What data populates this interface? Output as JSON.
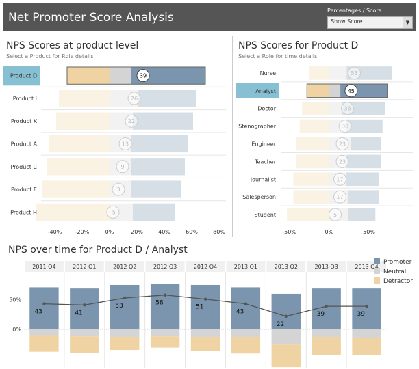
{
  "header": {
    "title": "Net Promoter Score Analysis",
    "filter_label": "Percentages / Score",
    "filter_value": "Show Score"
  },
  "colors": {
    "promoter": "#7a95ad",
    "neutral": "#d4d4d4",
    "detractor": "#efd3a2",
    "highlight": "#86c0d2"
  },
  "panel1": {
    "title": "NPS Scores at product level",
    "subtitle": "Select a Product for Role details"
  },
  "panel2": {
    "title": "NPS Scores for Product D",
    "subtitle": "Select a Role for time details"
  },
  "panel3": {
    "title": "NPS over time for Product D / Analyst"
  },
  "legend": [
    "Promoter",
    "Neutral",
    "Detractor"
  ],
  "chart_data": [
    {
      "type": "bar",
      "title": "NPS Scores at product level",
      "categories": [
        "Product D",
        "Product I",
        "Product K",
        "Product A",
        "Product C",
        "Product E",
        "Product H"
      ],
      "selected": "Product D",
      "xlim": [
        -50,
        85
      ],
      "xticks": [
        "-40%",
        "-20%",
        "0%",
        "20%",
        "40%",
        "60%",
        "80%"
      ],
      "xtick_values": [
        -40,
        -20,
        0,
        20,
        40,
        60,
        80
      ],
      "series": [
        {
          "name": "Detractor",
          "values": [
            -31,
            -37,
            -39,
            -44,
            -46,
            -49,
            -54
          ]
        },
        {
          "name": "Neutral",
          "values": [
            16,
            21,
            17,
            16,
            16,
            16,
            17
          ]
        },
        {
          "name": "Promoter",
          "values": [
            70,
            63,
            61,
            57,
            55,
            52,
            48
          ]
        }
      ],
      "scores": [
        39,
        26,
        22,
        13,
        9,
        3,
        -5
      ]
    },
    {
      "type": "bar",
      "title": "NPS Scores for Product D",
      "categories": [
        "Nurse",
        "Analyst",
        "Doctor",
        "Stenographer",
        "Engineer",
        "Teacher",
        "Journalist",
        "Salesperson",
        "Student"
      ],
      "selected": "Analyst",
      "xlim": [
        -60,
        105
      ],
      "xticks": [
        "-50%",
        "0%",
        "50%"
      ],
      "xtick_values": [
        -50,
        0,
        50
      ],
      "series": [
        {
          "name": "Detractor",
          "values": [
            -25,
            -28,
            -34,
            -37,
            -42,
            -42,
            -45,
            -45,
            -53
          ]
        },
        {
          "name": "Neutral",
          "values": [
            22,
            14,
            16,
            21,
            27,
            22,
            21,
            24,
            24
          ]
        },
        {
          "name": "Promoter",
          "values": [
            79,
            73,
            70,
            67,
            65,
            65,
            62,
            62,
            58
          ]
        }
      ],
      "scores": [
        53,
        45,
        36,
        30,
        23,
        23,
        17,
        17,
        5
      ]
    },
    {
      "type": "bar",
      "title": "NPS over time for Product D / Analyst",
      "categories": [
        "2011 Q4",
        "2012 Q1",
        "2012 Q2",
        "2012 Q3",
        "2012 Q4",
        "2013 Q1",
        "2013 Q2",
        "2013 Q3",
        "2013 Q4"
      ],
      "ylim": [
        -65,
        90
      ],
      "yticks": [
        "50%",
        "0%"
      ],
      "ytick_values": [
        50,
        0
      ],
      "series": [
        {
          "name": "Promoter",
          "values": [
            71,
            69,
            75,
            77,
            75,
            71,
            60,
            69,
            69
          ]
        },
        {
          "name": "Neutral",
          "values": [
            -10,
            -12,
            -13,
            -12,
            -13,
            -13,
            -26,
            -13,
            -14
          ]
        },
        {
          "name": "Detractor",
          "values": [
            -28,
            -28,
            -22,
            -19,
            -24,
            -28,
            -38,
            -30,
            -30
          ]
        }
      ],
      "nps_line": [
        43,
        41,
        53,
        58,
        51,
        43,
        22,
        39,
        39
      ]
    }
  ]
}
